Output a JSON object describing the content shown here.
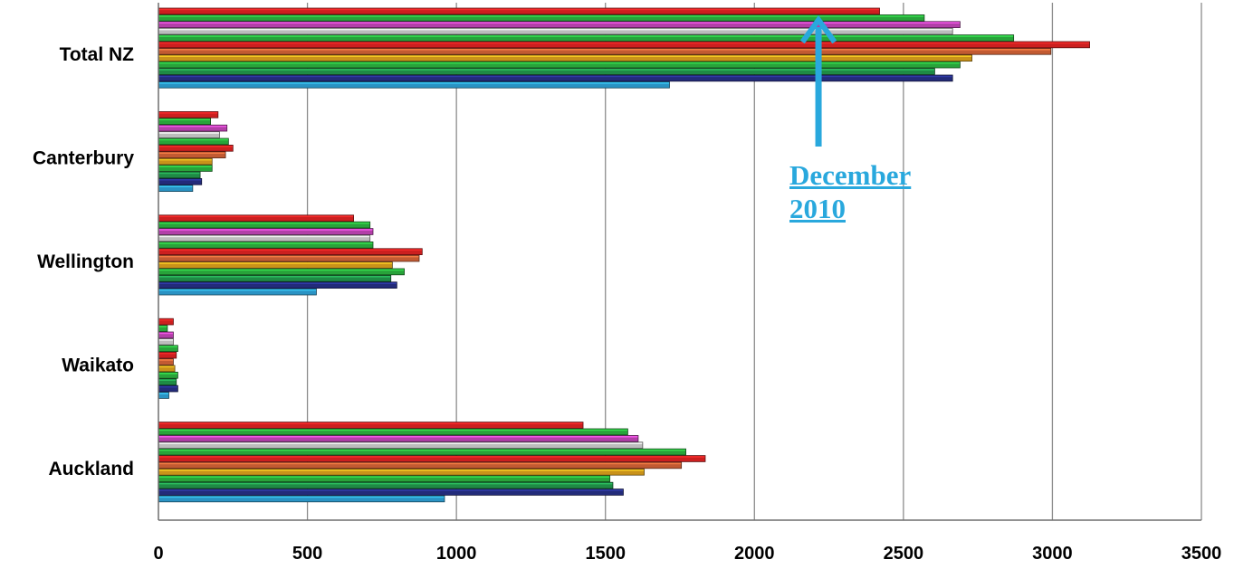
{
  "chart_data": {
    "type": "bar",
    "orientation": "horizontal",
    "categories": [
      "Auckland",
      "Waikato",
      "Wellington",
      "Canterbury",
      "Total NZ"
    ],
    "x_ticks": [
      "0",
      "500",
      "1000",
      "1500",
      "2000",
      "2500",
      "3000",
      "3500"
    ],
    "xlim": [
      0,
      3500
    ],
    "grid": true,
    "series": [
      {
        "color": "#2a93c4",
        "values": [
          960,
          35,
          530,
          115,
          1715
        ]
      },
      {
        "color": "#232b7a",
        "values": [
          1560,
          65,
          800,
          145,
          2665
        ]
      },
      {
        "color": "#1f8a45",
        "values": [
          1525,
          60,
          780,
          140,
          2605
        ]
      },
      {
        "color": "#28a33a",
        "values": [
          1515,
          65,
          825,
          180,
          2690
        ]
      },
      {
        "color": "#c9921a",
        "values": [
          1630,
          55,
          785,
          180,
          2730
        ]
      },
      {
        "color": "#c25a32",
        "values": [
          1755,
          50,
          875,
          225,
          2995
        ]
      },
      {
        "color": "#cc1f1f",
        "values": [
          1835,
          60,
          885,
          250,
          3125
        ]
      },
      {
        "color": "#28a33a",
        "values": [
          1770,
          65,
          720,
          235,
          2870
        ]
      },
      {
        "color": "#bcbcbc",
        "values": [
          1625,
          50,
          710,
          205,
          2665
        ]
      },
      {
        "color": "#b23fa8",
        "values": [
          1610,
          50,
          720,
          230,
          2690
        ]
      },
      {
        "color": "#28a33a",
        "values": [
          1575,
          30,
          710,
          175,
          2570
        ]
      },
      {
        "color": "#cc1f1f",
        "values": [
          1425,
          50,
          655,
          200,
          2420
        ]
      }
    ],
    "annotation": {
      "text_line1": "December",
      "text_line2": "2010",
      "color": "#29a8dd",
      "points_to_value": 2215
    }
  }
}
